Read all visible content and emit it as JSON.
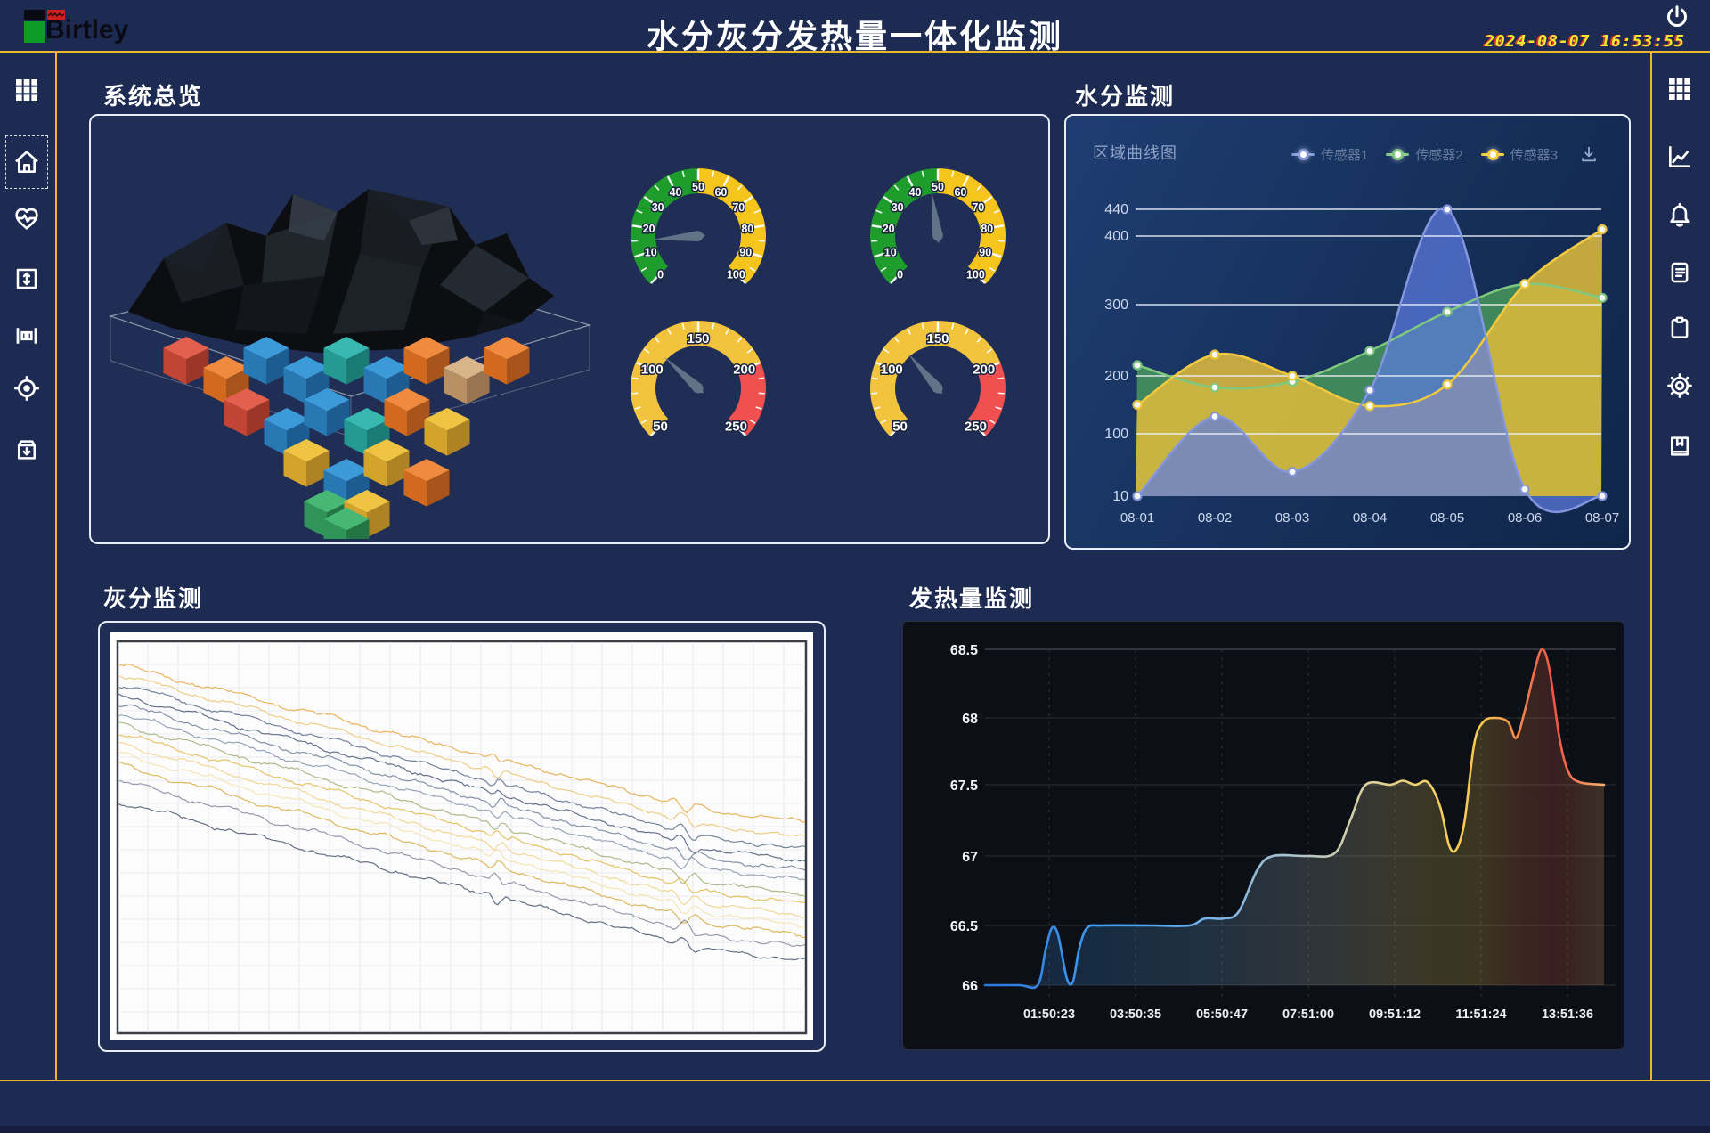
{
  "header": {
    "logo_text": "Birtley",
    "title": "水分灰分发热量一体化监测",
    "datetime": "2024-08-07 16:53:55"
  },
  "sidebar_left": {
    "items": [
      {
        "icon": "grid-icon",
        "active": false
      },
      {
        "icon": "home-icon",
        "active": true
      },
      {
        "icon": "heartbeat-icon",
        "active": false
      },
      {
        "icon": "expand-vertical-icon",
        "active": false
      },
      {
        "icon": "ruler-icon",
        "active": false
      },
      {
        "icon": "target-icon",
        "active": false
      },
      {
        "icon": "archive-icon",
        "active": false
      }
    ]
  },
  "sidebar_right": {
    "items": [
      {
        "icon": "grid-icon"
      },
      {
        "icon": "line-chart-icon"
      },
      {
        "icon": "bell-icon"
      },
      {
        "icon": "document-icon"
      },
      {
        "icon": "clipboard-icon"
      },
      {
        "icon": "gear-icon"
      },
      {
        "icon": "book-icon"
      }
    ]
  },
  "sections": {
    "overview": {
      "title": "系统总览"
    },
    "moisture": {
      "title": "水分监测",
      "chart_label": "区域曲线图"
    },
    "ash": {
      "title": "灰分监测"
    },
    "calorific": {
      "title": "发热量监测"
    }
  },
  "chart_data": [
    {
      "id": "overview-gauges",
      "type": "gauge",
      "gauges": [
        {
          "name": "gauge-top-left",
          "min": 0,
          "max": 100,
          "value": 15,
          "label_step": 10,
          "minor_step": 5,
          "bands": [
            {
              "from": 0,
              "to": 50,
              "color": "#1f9d2c"
            },
            {
              "from": 50,
              "to": 100,
              "color": "#f5c51e"
            }
          ]
        },
        {
          "name": "gauge-top-right",
          "min": 0,
          "max": 100,
          "value": 47,
          "label_step": 10,
          "minor_step": 5,
          "bands": [
            {
              "from": 0,
              "to": 50,
              "color": "#1f9d2c"
            },
            {
              "from": 50,
              "to": 100,
              "color": "#f5c51e"
            }
          ]
        },
        {
          "name": "gauge-bottom-left",
          "min": 50,
          "max": 250,
          "value": 115,
          "label_step": 50,
          "minor_step": 10,
          "bands": [
            {
              "from": 50,
              "to": 200,
              "color": "#f2c43d"
            },
            {
              "from": 200,
              "to": 250,
              "color": "#f05050"
            }
          ]
        },
        {
          "name": "gauge-bottom-right",
          "min": 50,
          "max": 250,
          "value": 120,
          "label_step": 50,
          "minor_step": 10,
          "bands": [
            {
              "from": 50,
              "to": 200,
              "color": "#f2c43d"
            },
            {
              "from": 200,
              "to": 250,
              "color": "#f05050"
            }
          ]
        }
      ]
    },
    {
      "id": "moisture",
      "type": "area",
      "title": "区域曲线图",
      "legend_position": "top-right",
      "categories": [
        "08-01",
        "08-02",
        "08-03",
        "08-04",
        "08-05",
        "08-06",
        "08-07"
      ],
      "y_ticks": [
        10,
        100,
        200,
        300,
        400,
        440
      ],
      "ylim": [
        10,
        440
      ],
      "grid": "horizontal-only",
      "series": [
        {
          "name": "传感器1",
          "line_color": "#8496dd",
          "fill_color": "#5d7ce0",
          "fill_opacity": 0.72,
          "values": [
            10,
            130,
            45,
            175,
            440,
            20,
            10
          ]
        },
        {
          "name": "传感器2",
          "line_color": "#7fc97f",
          "fill_color": "#4a9e5c",
          "fill_opacity": 0.8,
          "values": [
            215,
            180,
            190,
            235,
            290,
            330,
            310
          ]
        },
        {
          "name": "传感器3",
          "line_color": "#f2ca3e",
          "fill_color": "#dcba3e",
          "fill_opacity": 0.88,
          "values": [
            150,
            230,
            200,
            148,
            185,
            330,
            410
          ]
        }
      ]
    },
    {
      "id": "ash",
      "type": "multi-line",
      "title": "",
      "grid": true,
      "note": "unlabeled noisy declining traces on white background",
      "lines": [
        {
          "color": "#e9ab4a",
          "y0": 0.06,
          "y1": 0.46
        },
        {
          "color": "#ecc678",
          "y0": 0.085,
          "y1": 0.5
        },
        {
          "color": "#68748f",
          "y0": 0.11,
          "y1": 0.53
        },
        {
          "color": "#57627e",
          "y0": 0.135,
          "y1": 0.56
        },
        {
          "color": "#7a86a0",
          "y0": 0.16,
          "y1": 0.585
        },
        {
          "color": "#8f9ab1",
          "y0": 0.185,
          "y1": 0.61
        },
        {
          "color": "#a3b57e",
          "y0": 0.21,
          "y1": 0.645
        },
        {
          "color": "#e3bd55",
          "y0": 0.235,
          "y1": 0.67
        },
        {
          "color": "#efd489",
          "y0": 0.26,
          "y1": 0.7
        },
        {
          "color": "#f3e3ad",
          "y0": 0.285,
          "y1": 0.725
        },
        {
          "color": "#d8b04e",
          "y0": 0.315,
          "y1": 0.75
        },
        {
          "color": "#8a90a4",
          "y0": 0.355,
          "y1": 0.78
        },
        {
          "color": "#535e76",
          "y0": 0.41,
          "y1": 0.815
        }
      ]
    },
    {
      "id": "calorific",
      "type": "line",
      "y_ticks": [
        66,
        66.5,
        67,
        67.5,
        68,
        68.5
      ],
      "ylim": [
        66,
        68.5
      ],
      "x_ticks": [
        "01:50:23",
        "03:50:35",
        "05:50:47",
        "07:51:00",
        "09:51:12",
        "11:51:24",
        "13:51:36"
      ],
      "line_gradient": [
        "#2d77dd",
        "#3f9bee",
        "#6fb0e8",
        "#aec4cf",
        "#ddd2a0",
        "#f2d263",
        "#f7c94e",
        "#f2804e",
        "#ef5546",
        "#f6b269"
      ],
      "points": [
        [
          0,
          66
        ],
        [
          0.055,
          66
        ],
        [
          0.085,
          66
        ],
        [
          0.098,
          66.3
        ],
        [
          0.108,
          66.48
        ],
        [
          0.118,
          66.42
        ],
        [
          0.132,
          66.06
        ],
        [
          0.142,
          66.03
        ],
        [
          0.152,
          66.3
        ],
        [
          0.165,
          66.48
        ],
        [
          0.19,
          66.5
        ],
        [
          0.27,
          66.5
        ],
        [
          0.33,
          66.5
        ],
        [
          0.355,
          66.55
        ],
        [
          0.385,
          66.55
        ],
        [
          0.41,
          66.6
        ],
        [
          0.44,
          66.9
        ],
        [
          0.465,
          67
        ],
        [
          0.52,
          67
        ],
        [
          0.565,
          67.02
        ],
        [
          0.59,
          67.25
        ],
        [
          0.615,
          67.5
        ],
        [
          0.655,
          67.5
        ],
        [
          0.675,
          67.53
        ],
        [
          0.695,
          67.5
        ],
        [
          0.715,
          67.52
        ],
        [
          0.735,
          67.35
        ],
        [
          0.75,
          67.07
        ],
        [
          0.762,
          67.05
        ],
        [
          0.775,
          67.25
        ],
        [
          0.79,
          67.8
        ],
        [
          0.805,
          67.97
        ],
        [
          0.825,
          68
        ],
        [
          0.845,
          67.97
        ],
        [
          0.858,
          67.85
        ],
        [
          0.872,
          68.05
        ],
        [
          0.888,
          68.35
        ],
        [
          0.9,
          68.5
        ],
        [
          0.912,
          68.35
        ],
        [
          0.928,
          67.85
        ],
        [
          0.942,
          67.6
        ],
        [
          0.96,
          67.52
        ],
        [
          1,
          67.5
        ]
      ]
    }
  ]
}
